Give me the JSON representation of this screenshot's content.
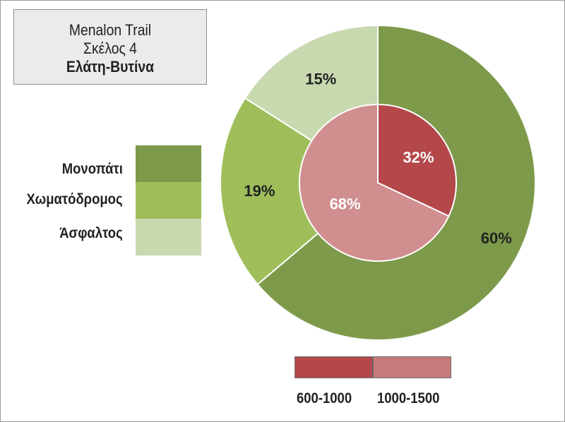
{
  "title": {
    "line1": "Menalon Trail",
    "line2": "Σκέλος 4",
    "line3": "Ελάτη-Βυτίνα"
  },
  "colors": {
    "monopati": "#7d9a4a",
    "xomatodromos": "#9fbe5a",
    "asfaltos": "#c8d9b0",
    "alt_600_1000": "#b3474a",
    "alt_1000_1500": "#d18e8f",
    "alt_1000_1500_legend": "#c77a7b",
    "label_dark": "#222222",
    "label_light": "#ffffff"
  },
  "legend_surface": [
    {
      "label": "Μονοπάτι",
      "color": "#7d9a4a"
    },
    {
      "label": "Χωματόδρομος",
      "color": "#9fbe5a"
    },
    {
      "label": "Άσφαλτος",
      "color": "#c8d9b0"
    }
  ],
  "legend_altitude": [
    {
      "label": "600-1000",
      "color": "#b3474a"
    },
    {
      "label": "1000-1500",
      "color": "#c77a7b"
    }
  ],
  "chart_data": [
    {
      "type": "pie",
      "ring": "outer",
      "categories": [
        "Μονοπάτι",
        "Χωματόδρομος",
        "Άσφαλτος"
      ],
      "values": [
        60,
        19,
        15
      ],
      "labels": [
        "60%",
        "19%",
        "15%"
      ]
    },
    {
      "type": "pie",
      "ring": "inner",
      "categories": [
        "600-1000",
        "1000-1500"
      ],
      "values": [
        32,
        68
      ],
      "labels": [
        "32%",
        "68%"
      ]
    }
  ]
}
